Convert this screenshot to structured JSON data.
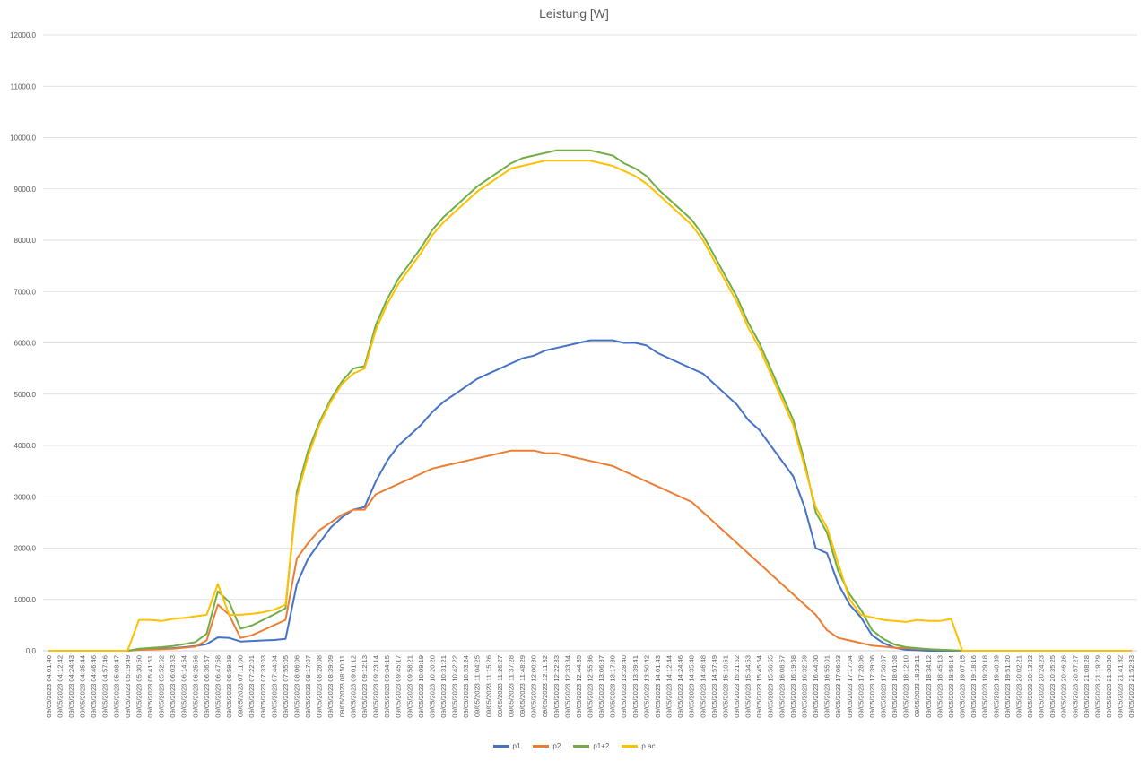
{
  "chart_data": {
    "type": "line",
    "title": "Leistung [W]",
    "ylim": [
      0,
      12000
    ],
    "yticks": [
      "0.0",
      "1000.0",
      "2000.0",
      "3000.0",
      "4000.0",
      "5000.0",
      "6000.0",
      "7000.0",
      "8000.0",
      "9000.0",
      "10000.0",
      "11000.0",
      "12000.0"
    ],
    "ytick_values": [
      0,
      1000,
      2000,
      3000,
      4000,
      5000,
      6000,
      7000,
      8000,
      9000,
      10000,
      11000,
      12000
    ],
    "grid": true,
    "legend_position": "bottom",
    "xtick_labels": [
      "09/05/2023 04:01:40",
      "09/05/2023 04:12:42",
      "09/05/2023 04:24:43",
      "09/05/2023 04:35:44",
      "09/05/2023 04:46:46",
      "09/05/2023 04:57:46",
      "09/05/2023 05:08:47",
      "09/05/2023 05:19:49",
      "09/05/2023 05:30:50",
      "09/05/2023 05:41:51",
      "09/05/2023 05:52:52",
      "09/05/2023 06:03:53",
      "09/05/2023 06:14:54",
      "09/05/2023 06:25:56",
      "09/05/2023 06:36:57",
      "09/05/2023 06:47:58",
      "09/05/2023 06:59:59",
      "09/05/2023 07:11:00",
      "09/05/2023 07:22:01",
      "09/05/2023 07:33:03",
      "09/05/2023 07:44:04",
      "09/05/2023 07:55:05",
      "09/05/2023 08:06:06",
      "09/05/2023 08:17:07",
      "09/05/2023 08:28:08",
      "09/05/2023 08:39:09",
      "09/05/2023 08:50:11",
      "09/05/2023 09:01:12",
      "09/05/2023 09:12:13",
      "09/05/2023 09:23:14",
      "09/05/2023 09:34:15",
      "09/05/2023 09:45:17",
      "09/05/2023 09:58:21",
      "09/05/2023 10:09:19",
      "09/05/2023 10:20:20",
      "09/05/2023 10:31:21",
      "09/05/2023 10:42:22",
      "09/05/2023 10:53:24",
      "09/05/2023 11:04:25",
      "09/05/2023 11:15:26",
      "09/05/2023 11:26:27",
      "09/05/2023 11:37:28",
      "09/05/2023 11:48:29",
      "09/05/2023 12:00:30",
      "09/05/2023 12:11:32",
      "09/05/2023 12:22:33",
      "09/05/2023 12:33:34",
      "09/05/2023 12:44:35",
      "09/05/2023 12:55:36",
      "09/05/2023 13:06:37",
      "09/05/2023 13:17:39",
      "09/05/2023 13:28:40",
      "09/05/2023 13:39:41",
      "09/05/2023 13:50:42",
      "09/05/2023 14:01:43",
      "09/05/2023 14:12:44",
      "09/05/2023 14:24:46",
      "09/05/2023 14:35:48",
      "09/05/2023 14:46:48",
      "09/05/2023 14:57:49",
      "09/05/2023 15:10:51",
      "09/05/2023 15:21:52",
      "09/05/2023 15:34:53",
      "09/05/2023 15:45:54",
      "09/05/2023 15:56:55",
      "09/05/2023 16:08:57",
      "09/05/2023 16:19:58",
      "09/05/2023 16:32:59",
      "09/05/2023 16:44:00",
      "09/05/2023 16:55:01",
      "09/05/2023 17:06:03",
      "09/05/2023 17:17:04",
      "09/05/2023 17:28:06",
      "09/05/2023 17:39:06",
      "09/05/2023 17:50:07",
      "09/05/2023 18:01:08",
      "09/05/2023 18:12:10",
      "09/05/2023 18:23:11",
      "09/05/2023 18:34:12",
      "09/05/2023 18:45:13",
      "09/05/2023 18:56:14",
      "09/05/2023 19:07:15",
      "09/05/2023 19:18:16",
      "09/05/2023 19:29:18",
      "09/05/2023 19:40:39",
      "09/05/2023 19:51:20",
      "09/05/2023 20:02:21",
      "09/05/2023 20:13:22",
      "09/05/2023 20:24:23",
      "09/05/2023 20:35:25",
      "09/05/2023 20:46:26",
      "09/05/2023 20:57:27",
      "09/05/2023 21:08:28",
      "09/05/2023 21:19:29",
      "09/05/2023 21:30:30",
      "09/05/2023 21:41:32",
      "09/05/2023 21:52:33"
    ],
    "series": [
      {
        "name": "p1",
        "color": "#4472C4",
        "values": [
          0,
          0,
          0,
          0,
          0,
          0,
          0,
          0,
          20,
          30,
          40,
          50,
          70,
          90,
          130,
          260,
          250,
          180,
          190,
          200,
          210,
          230,
          1300,
          1800,
          2100,
          2400,
          2600,
          2750,
          2800,
          3300,
          3700,
          4000,
          4200,
          4400,
          4650,
          4850,
          5000,
          5150,
          5300,
          5400,
          5500,
          5600,
          5700,
          5750,
          5850,
          5900,
          5950,
          6000,
          6050,
          6050,
          6050,
          6000,
          6000,
          5950,
          5800,
          5700,
          5600,
          5500,
          5400,
          5200,
          5000,
          4800,
          4500,
          4300,
          4000,
          3700,
          3400,
          2800,
          2000,
          1900,
          1300,
          900,
          650,
          300,
          150,
          60,
          20,
          10,
          0,
          0,
          0,
          0,
          0,
          0,
          0,
          0,
          0,
          0,
          0,
          0,
          0,
          0,
          0,
          0,
          0,
          0,
          0
        ]
      },
      {
        "name": "p2",
        "color": "#ED7D31",
        "values": [
          0,
          0,
          0,
          0,
          0,
          0,
          0,
          0,
          20,
          25,
          30,
          40,
          60,
          80,
          200,
          900,
          700,
          250,
          300,
          400,
          500,
          600,
          1800,
          2100,
          2350,
          2500,
          2650,
          2750,
          2750,
          3050,
          3150,
          3250,
          3350,
          3450,
          3550,
          3600,
          3650,
          3700,
          3750,
          3800,
          3850,
          3900,
          3900,
          3900,
          3850,
          3850,
          3800,
          3750,
          3700,
          3650,
          3600,
          3500,
          3400,
          3300,
          3200,
          3100,
          3000,
          2900,
          2700,
          2500,
          2300,
          2100,
          1900,
          1700,
          1500,
          1300,
          1100,
          900,
          700,
          400,
          250,
          200,
          150,
          100,
          80,
          60,
          50,
          40,
          30,
          20,
          10,
          0,
          0,
          0,
          0,
          0,
          0,
          0,
          0,
          0,
          0,
          0,
          0,
          0,
          0,
          0,
          0
        ]
      },
      {
        "name": "p1+2",
        "color": "#70AD47",
        "values": [
          0,
          0,
          0,
          0,
          0,
          0,
          0,
          0,
          40,
          55,
          70,
          90,
          130,
          170,
          330,
          1160,
          950,
          430,
          490,
          600,
          710,
          830,
          3100,
          3900,
          4450,
          4900,
          5250,
          5500,
          5550,
          6350,
          6850,
          7250,
          7550,
          7850,
          8200,
          8450,
          8650,
          8850,
          9050,
          9200,
          9350,
          9500,
          9600,
          9650,
          9700,
          9750,
          9750,
          9750,
          9750,
          9700,
          9650,
          9500,
          9400,
          9250,
          9000,
          8800,
          8600,
          8400,
          8100,
          7700,
          7300,
          6900,
          6400,
          6000,
          5500,
          5000,
          4500,
          3700,
          2700,
          2300,
          1550,
          1100,
          800,
          400,
          230,
          120,
          70,
          50,
          30,
          20,
          10,
          0,
          0,
          0,
          0,
          0,
          0,
          0,
          0,
          0,
          0,
          0,
          0,
          0,
          0,
          0,
          0
        ]
      },
      {
        "name": "p ac",
        "color": "#FFC000",
        "values": [
          0,
          0,
          0,
          0,
          0,
          0,
          0,
          0,
          600,
          600,
          580,
          620,
          640,
          670,
          700,
          1300,
          700,
          700,
          720,
          750,
          800,
          900,
          3000,
          3800,
          4400,
          4850,
          5200,
          5400,
          5500,
          6250,
          6750,
          7150,
          7450,
          7750,
          8100,
          8350,
          8550,
          8750,
          8950,
          9100,
          9250,
          9400,
          9450,
          9500,
          9550,
          9550,
          9550,
          9550,
          9550,
          9500,
          9450,
          9350,
          9250,
          9100,
          8900,
          8700,
          8500,
          8300,
          8000,
          7600,
          7200,
          6800,
          6300,
          5900,
          5400,
          4900,
          4400,
          3600,
          2800,
          2400,
          1700,
          1000,
          700,
          650,
          600,
          580,
          560,
          600,
          580,
          580,
          620,
          0,
          0,
          0,
          0,
          0,
          0,
          0,
          0,
          0,
          0,
          0,
          0,
          0,
          0,
          0,
          0
        ]
      }
    ]
  }
}
